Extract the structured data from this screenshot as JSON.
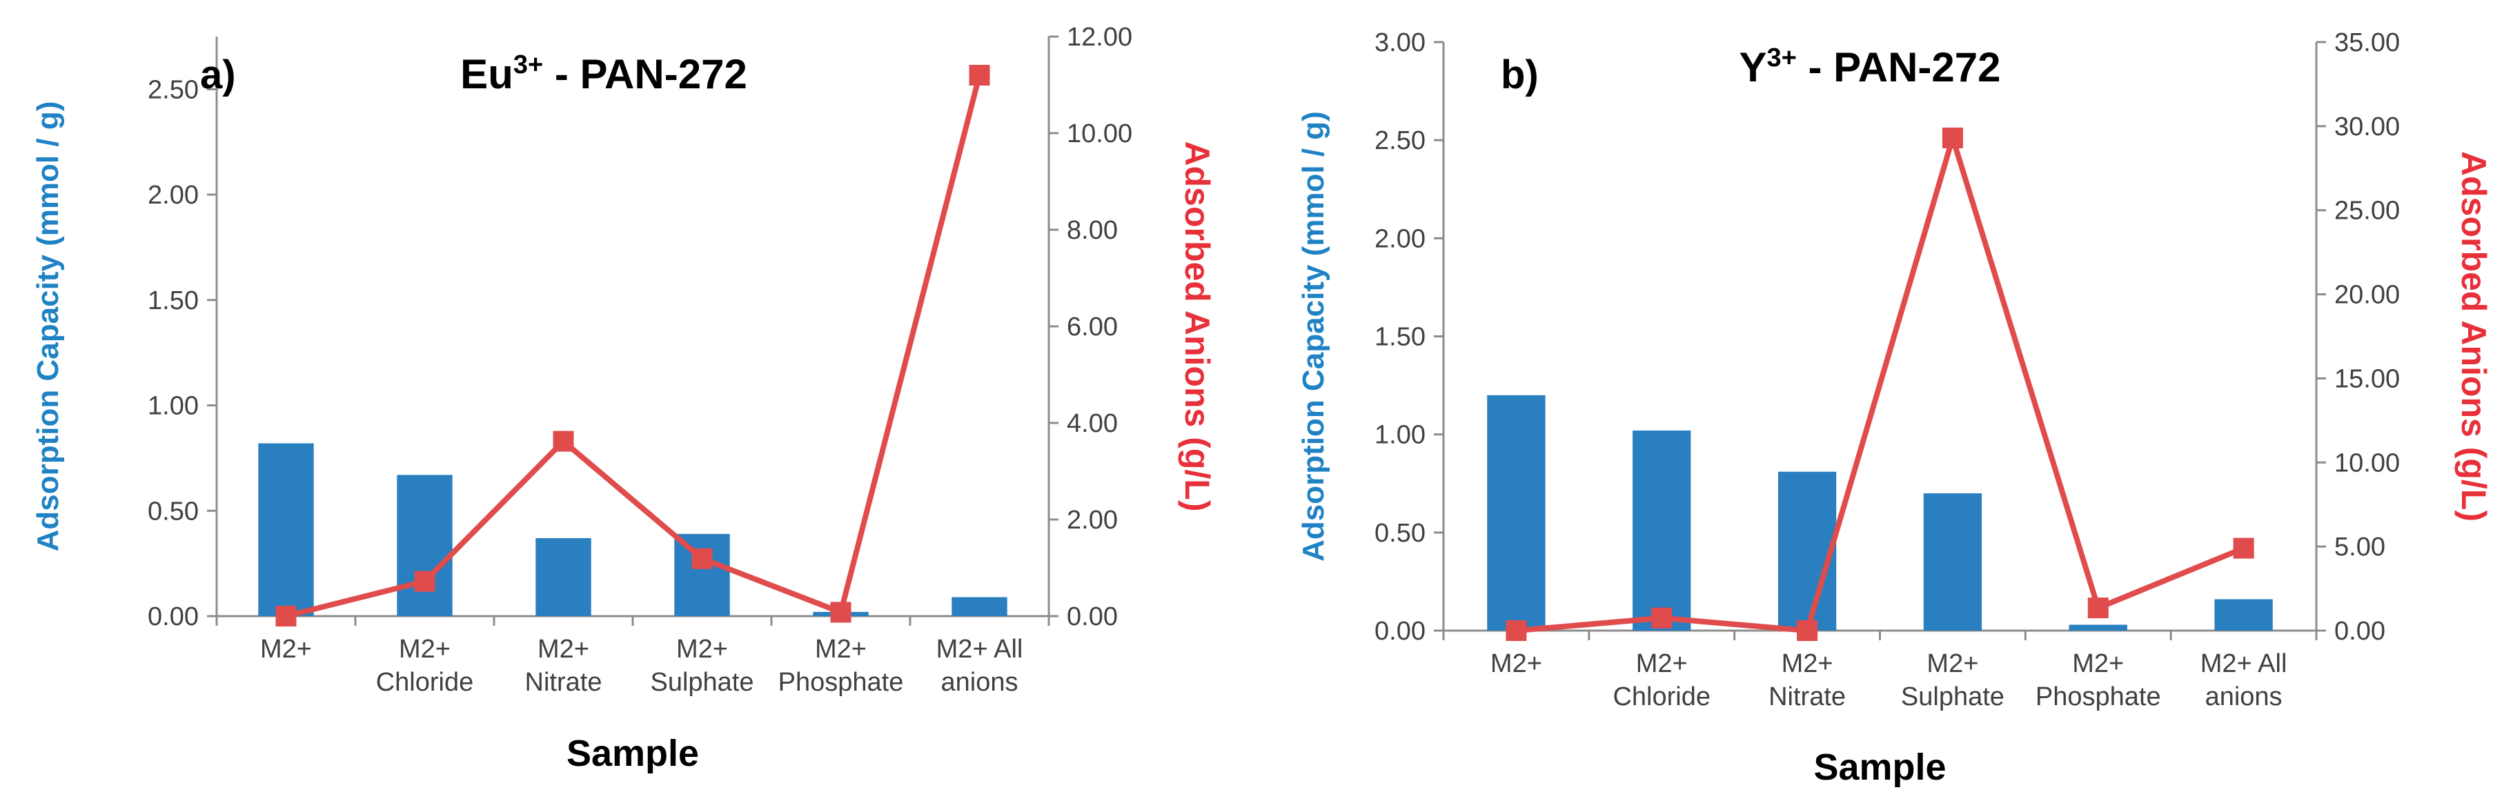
{
  "colors": {
    "bar": "#2a7fc0",
    "line": "#e04b4b",
    "axis": "#8c8c8c",
    "left_label": "#1f82c4",
    "right_label": "#e8303a"
  },
  "chart_data": [
    {
      "type": "bar",
      "panel": "a)",
      "title_main": "Eu",
      "title_sup": "3+",
      "title_rest": " - PAN-272",
      "xlabel": "Sample",
      "ylabel": "Adsorption Capacity (mmol / g)",
      "y2label": "Adsorbed Anions (g/L)",
      "categories": [
        [
          "M2+",
          ""
        ],
        [
          "M2+",
          "Chloride"
        ],
        [
          "M2+",
          "Nitrate"
        ],
        [
          "M2+",
          "Sulphate"
        ],
        [
          "M2+",
          "Phosphate"
        ],
        [
          "M2+ All",
          "anions"
        ]
      ],
      "ylim": [
        0,
        2.75
      ],
      "yticks": [
        "0.00",
        "0.50",
        "1.00",
        "1.50",
        "2.00",
        "2.50"
      ],
      "y2lim": [
        0,
        12
      ],
      "y2ticks": [
        "0.00",
        "2.00",
        "4.00",
        "6.00",
        "8.00",
        "10.00",
        "12.00"
      ],
      "series": [
        {
          "name": "Adsorption Capacity",
          "type": "bar",
          "axis": "left",
          "values": [
            0.82,
            0.67,
            0.37,
            0.39,
            0.02,
            0.09
          ]
        },
        {
          "name": "Adsorbed Anions",
          "type": "line",
          "axis": "right",
          "values": [
            0.0,
            0.72,
            3.62,
            1.19,
            0.08,
            11.2
          ]
        }
      ]
    },
    {
      "type": "bar",
      "panel": "b)",
      "title_main": "Y",
      "title_sup": "3+",
      "title_rest": " - PAN-272",
      "xlabel": "Sample",
      "ylabel": "Adsorption Capacity (mmol / g)",
      "y2label": "Adsorbed Anions (g/L)",
      "categories": [
        [
          "M2+",
          ""
        ],
        [
          "M2+",
          "Chloride"
        ],
        [
          "M2+",
          "Nitrate"
        ],
        [
          "M2+",
          "Sulphate"
        ],
        [
          "M2+",
          "Phosphate"
        ],
        [
          "M2+ All",
          "anions"
        ]
      ],
      "ylim": [
        0,
        3.0
      ],
      "yticks": [
        "0.00",
        "0.50",
        "1.00",
        "1.50",
        "2.00",
        "2.50",
        "3.00"
      ],
      "y2lim": [
        0,
        35
      ],
      "y2ticks": [
        "0.00",
        "5.00",
        "10.00",
        "15.00",
        "20.00",
        "25.00",
        "30.00",
        "35.00"
      ],
      "series": [
        {
          "name": "Adsorption Capacity",
          "type": "bar",
          "axis": "left",
          "values": [
            1.2,
            1.02,
            0.81,
            0.7,
            0.03,
            0.16
          ]
        },
        {
          "name": "Adsorbed Anions",
          "type": "line",
          "axis": "right",
          "values": [
            0.0,
            0.75,
            0.0,
            29.3,
            1.35,
            4.9
          ]
        }
      ]
    }
  ]
}
